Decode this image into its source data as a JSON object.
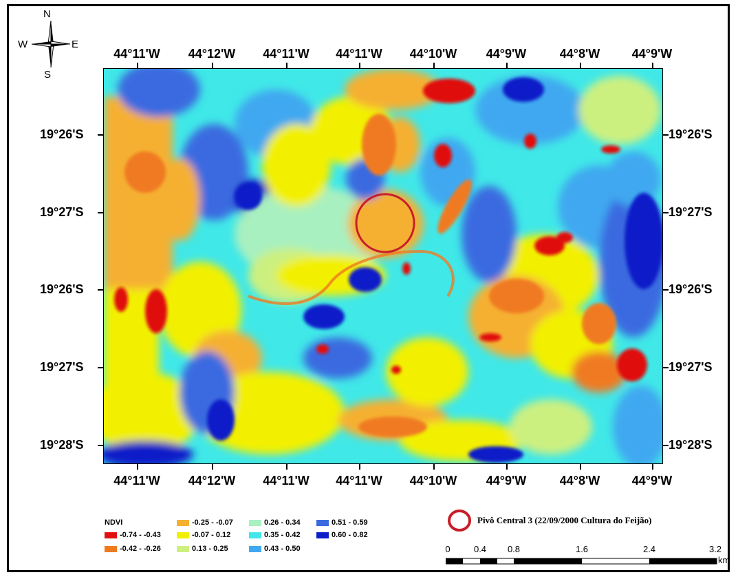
{
  "compass": {
    "n": "N",
    "s": "S",
    "e": "E",
    "w": "W"
  },
  "top_longitudes": [
    "44°11'W",
    "44°12'W",
    "44°11'W",
    "44°11'W",
    "44°10'W",
    "44°9'W",
    "44°8'W",
    "44°9'W"
  ],
  "bottom_longitudes": [
    "44°11'W",
    "44°12'W",
    "44°11'W",
    "44°11'W",
    "44°10'W",
    "44°9'W",
    "44°8'W",
    "44°9'W"
  ],
  "left_latitudes": [
    "19°26'S",
    "19°27'S",
    "19°26'S",
    "19°27'S",
    "19°28'S"
  ],
  "right_latitudes": [
    "19°26'S",
    "19°27'S",
    "19°26'S",
    "19°27'S",
    "19°28'S"
  ],
  "legend": {
    "title": "NDVI",
    "items": [
      {
        "label": "-0.74 - -0.43",
        "color": "#e01010"
      },
      {
        "label": "-0.42 - -0.26",
        "color": "#f07a20"
      },
      {
        "label": "-0.25 - -0.07",
        "color": "#f5b030"
      },
      {
        "label": "-0.07 - 0.12",
        "color": "#f2f000"
      },
      {
        "label": "0.13 - 0.25",
        "color": "#ccf080"
      },
      {
        "label": "0.26 - 0.34",
        "color": "#a8f0c0"
      },
      {
        "label": "0.35 - 0.42",
        "color": "#40e8e8"
      },
      {
        "label": "0.43 - 0.50",
        "color": "#40a8f0"
      },
      {
        "label": "0.51 - 0.59",
        "color": "#3a6ae0"
      },
      {
        "label": "0.60 - 0.82",
        "color": "#0c1ec8"
      }
    ]
  },
  "pivot_legend": {
    "label": "Pivô Central 3 (22/09/2000 Cultura do Feijão)",
    "color": "#c81e2a"
  },
  "scale_bar": {
    "labels": [
      "0",
      "0.4",
      "0.8",
      "1.6",
      "2.4",
      "3.2"
    ],
    "unit": "km"
  }
}
